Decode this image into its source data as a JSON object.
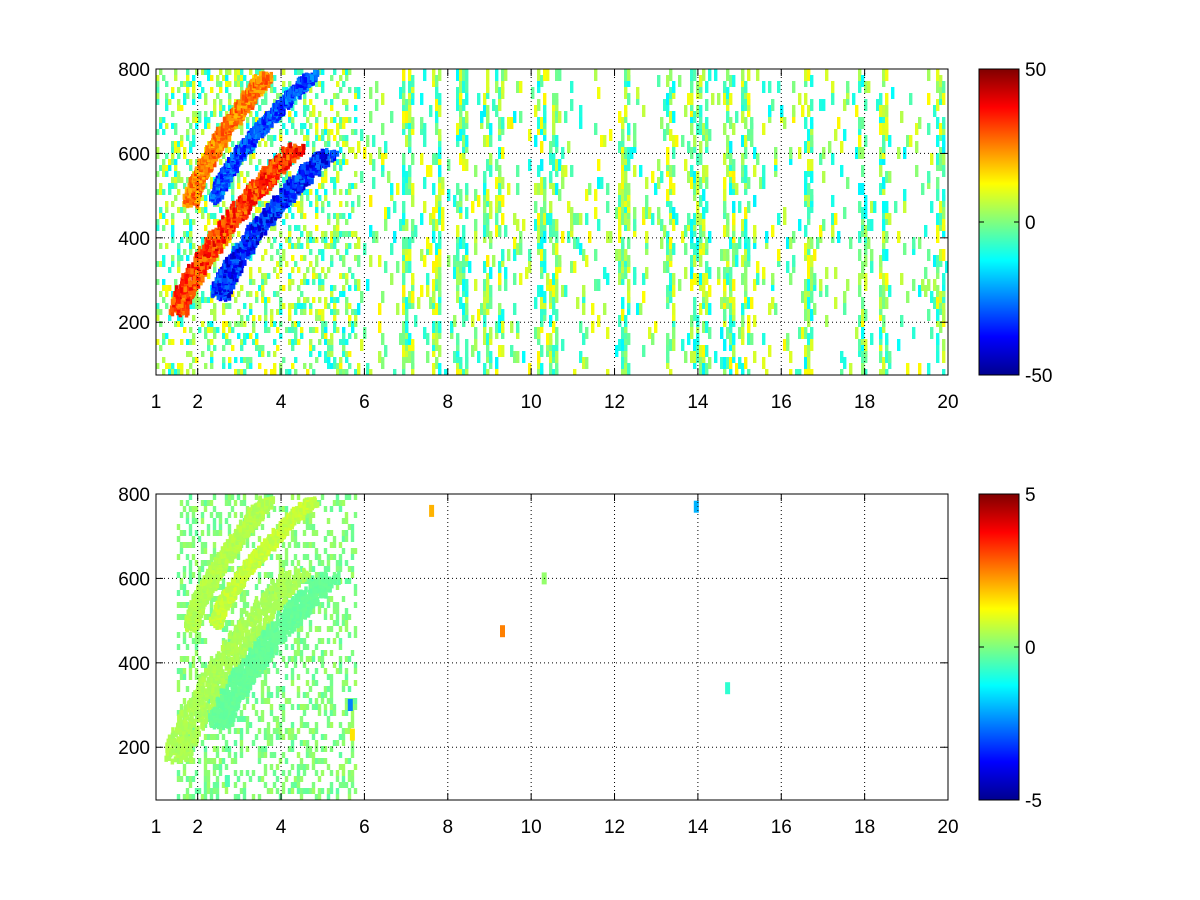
{
  "chart_data": [
    {
      "type": "heatmap",
      "title": "",
      "xlabel": "",
      "ylabel": "",
      "xlim": [
        1,
        20
      ],
      "ylim": [
        75,
        800
      ],
      "x_ticks": [
        1,
        2,
        4,
        6,
        8,
        10,
        12,
        14,
        16,
        18,
        20
      ],
      "x_tick_labels": [
        "1",
        "2",
        "4",
        "6",
        "8",
        "10",
        "12",
        "14",
        "16",
        "18",
        "20"
      ],
      "y_ticks": [
        200,
        400,
        600,
        800
      ],
      "y_tick_labels": [
        "200",
        "400",
        "600",
        "800"
      ],
      "grid": true,
      "colormap": "jet",
      "clim": [
        -50,
        50
      ],
      "colorbar_ticks": [
        -50,
        0,
        50
      ],
      "colorbar_tick_labels": [
        "-50",
        "0",
        "50"
      ],
      "noise_band_x": [
        1,
        20
      ],
      "noise_columns_x": [
        4.0,
        5.2,
        7.0,
        7.7,
        8.3,
        8.9,
        9.2,
        10.2,
        10.5,
        12.2,
        13.3,
        13.9,
        14.1,
        14.7,
        15.1,
        16.6,
        17.9,
        18.4,
        19.8
      ],
      "features": [
        {
          "name": "",
          "x_start": 1.8,
          "x_end": 3.6,
          "y_start": 490,
          "y_end": 790,
          "x_width": 0.35,
          "value": 30
        },
        {
          "name": "",
          "x_start": 2.4,
          "x_end": 4.7,
          "y_start": 500,
          "y_end": 790,
          "x_width": 0.28,
          "value": -35
        },
        {
          "name": "",
          "x_start": 1.5,
          "x_end": 4.3,
          "y_start": 230,
          "y_end": 620,
          "x_width": 0.45,
          "value": 38
        },
        {
          "name": "",
          "x_start": 2.5,
          "x_end": 5.1,
          "y_start": 270,
          "y_end": 610,
          "x_width": 0.45,
          "value": -40
        }
      ]
    },
    {
      "type": "heatmap",
      "title": "",
      "xlabel": "",
      "ylabel": "",
      "xlim": [
        1,
        20
      ],
      "ylim": [
        75,
        800
      ],
      "x_ticks": [
        1,
        2,
        4,
        6,
        8,
        10,
        12,
        14,
        16,
        18,
        20
      ],
      "x_tick_labels": [
        "1",
        "2",
        "4",
        "6",
        "8",
        "10",
        "12",
        "14",
        "16",
        "18",
        "20"
      ],
      "y_ticks": [
        200,
        400,
        600,
        800
      ],
      "y_tick_labels": [
        "200",
        "400",
        "600",
        "800"
      ],
      "grid": true,
      "colormap": "jet",
      "clim": [
        -5,
        5
      ],
      "colorbar_ticks": [
        -5,
        0,
        5
      ],
      "colorbar_tick_labels": [
        "-5",
        "0",
        "5"
      ],
      "noise_band_x": [
        1.5,
        5.8
      ],
      "noise_columns_x": [],
      "features": [
        {
          "name": "",
          "x_start": 1.8,
          "x_end": 3.6,
          "y_start": 490,
          "y_end": 790,
          "x_width": 0.35,
          "value": 0.6
        },
        {
          "name": "",
          "x_start": 2.4,
          "x_end": 4.7,
          "y_start": 500,
          "y_end": 790,
          "x_width": 0.28,
          "value": 0.8
        },
        {
          "name": "",
          "x_start": 1.5,
          "x_end": 4.3,
          "y_start": 180,
          "y_end": 620,
          "x_width": 0.7,
          "value": 0.5
        },
        {
          "name": "",
          "x_start": 2.5,
          "x_end": 5.1,
          "y_start": 260,
          "y_end": 610,
          "x_width": 0.6,
          "value": -0.3
        }
      ],
      "spots": [
        {
          "x": 2.7,
          "y": 120,
          "value": -0.5
        },
        {
          "x": 5.65,
          "y": 300,
          "value": -2.5
        },
        {
          "x": 5.7,
          "y": 230,
          "value": 1.5
        },
        {
          "x": 7.6,
          "y": 760,
          "value": 2.0
        },
        {
          "x": 9.3,
          "y": 475,
          "value": 2.5
        },
        {
          "x": 10.3,
          "y": 600,
          "value": 0.2
        },
        {
          "x": 13.95,
          "y": 770,
          "value": -2.0
        },
        {
          "x": 14.7,
          "y": 340,
          "value": -0.8
        }
      ]
    }
  ]
}
